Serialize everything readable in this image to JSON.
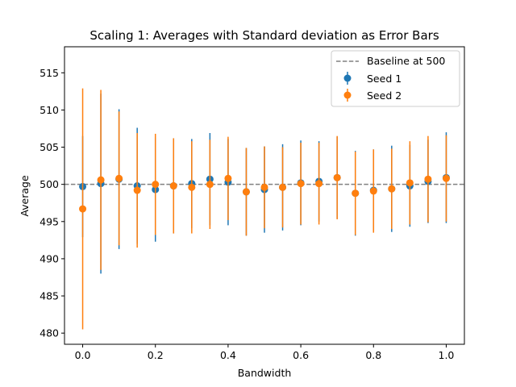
{
  "chart_data": {
    "type": "scatter",
    "title": "Scaling 1: Averages with Standard deviation as Error Bars",
    "xlabel": "Bandwidth",
    "ylabel": "Average",
    "xlim": [
      -0.05,
      1.05
    ],
    "ylim": [
      478.5,
      518.5
    ],
    "xticks": [
      0.0,
      0.2,
      0.4,
      0.6,
      0.8,
      1.0
    ],
    "xtick_labels": [
      "0.0",
      "0.2",
      "0.4",
      "0.6",
      "0.8",
      "1.0"
    ],
    "yticks": [
      480,
      485,
      490,
      495,
      500,
      505,
      510,
      515
    ],
    "ytick_labels": [
      "480",
      "485",
      "490",
      "495",
      "500",
      "505",
      "510",
      "515"
    ],
    "grid": false,
    "legend_position": "top-right",
    "baseline": {
      "value": 500,
      "label": "Baseline at 500",
      "color": "#808080"
    },
    "series": [
      {
        "name": "Seed 1",
        "color": "#1f77b4",
        "x": [
          0.0,
          0.05,
          0.1,
          0.15,
          0.2,
          0.25,
          0.3,
          0.35,
          0.4,
          0.45,
          0.5,
          0.55,
          0.6,
          0.65,
          0.7,
          0.75,
          0.8,
          0.85,
          0.9,
          0.95,
          1.0
        ],
        "y": [
          499.7,
          500.1,
          500.7,
          499.8,
          499.3,
          499.8,
          500.1,
          500.7,
          500.3,
          499.0,
          499.3,
          499.6,
          500.2,
          500.4,
          500.9,
          498.8,
          499.2,
          499.4,
          499.8,
          500.4,
          500.9
        ],
        "err": [
          6.8,
          12.1,
          9.4,
          7.8,
          7.0,
          6.4,
          6.0,
          6.2,
          5.8,
          5.9,
          5.8,
          5.8,
          5.7,
          5.4,
          5.5,
          5.7,
          5.5,
          5.8,
          5.5,
          5.6,
          6.1
        ]
      },
      {
        "name": "Seed 2",
        "color": "#ff7f0e",
        "x": [
          0.0,
          0.05,
          0.1,
          0.15,
          0.2,
          0.25,
          0.3,
          0.35,
          0.4,
          0.45,
          0.5,
          0.55,
          0.6,
          0.65,
          0.7,
          0.75,
          0.8,
          0.85,
          0.9,
          0.95,
          1.0
        ],
        "y": [
          496.7,
          500.6,
          500.8,
          499.2,
          500.0,
          499.8,
          499.6,
          500.0,
          500.8,
          499.0,
          499.6,
          499.6,
          500.1,
          500.1,
          500.9,
          498.8,
          499.1,
          499.4,
          500.2,
          500.7,
          500.8
        ],
        "err": [
          16.2,
          12.1,
          9.0,
          7.7,
          6.8,
          6.4,
          6.2,
          6.0,
          5.6,
          5.9,
          5.5,
          5.4,
          5.5,
          5.5,
          5.6,
          5.6,
          5.6,
          5.4,
          5.6,
          5.8,
          5.8
        ]
      }
    ]
  }
}
